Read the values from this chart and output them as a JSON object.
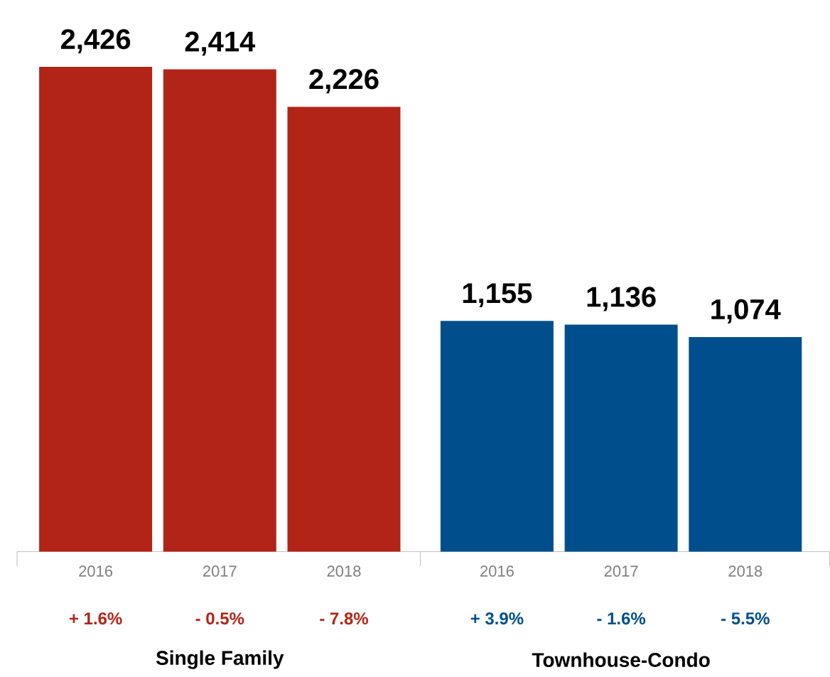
{
  "chart_data": {
    "type": "bar",
    "categories": [
      "2016",
      "2017",
      "2018",
      "2016",
      "2017",
      "2018"
    ],
    "series": [
      {
        "color": "#b22418",
        "values": [
          2426,
          2414,
          2226,
          null,
          null,
          null
        ],
        "value_labels": [
          "2,426",
          "2,414",
          "2,226",
          null,
          null,
          null
        ]
      },
      {
        "color": "#004f8c",
        "values": [
          null,
          null,
          null,
          1155,
          1136,
          1074
        ],
        "value_labels": [
          null,
          null,
          null,
          "1,155",
          "1,136",
          "1,074"
        ]
      }
    ],
    "annotations": [
      "+ 1.6%",
      "- 0.5%",
      "- 7.8%",
      "+ 3.9%",
      "- 1.6%",
      "- 5.5%",
      "Single Family",
      "Townhouse-Condo"
    ]
  }
}
